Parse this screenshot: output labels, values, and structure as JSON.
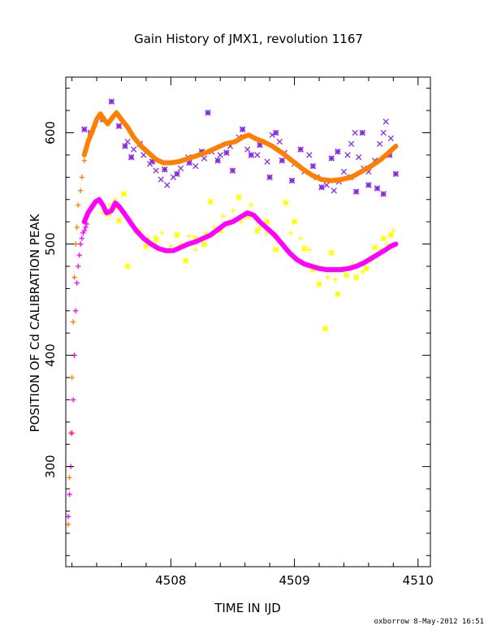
{
  "chart_data": {
    "type": "scatter",
    "title": "Gain History of JMX1, revolution 1167",
    "xlabel": "TIME IN IJD",
    "ylabel": "POSITION OF Cd CALIBRATION PEAK",
    "footer": "oxborrow  8-May-2012 16:51",
    "xlim": [
      4507.15,
      4510.1
    ],
    "ylim": [
      210,
      650
    ],
    "xticks": [
      4508,
      4509,
      4510
    ],
    "yticks": [
      300,
      400,
      500,
      600
    ],
    "grid": false,
    "series": [
      {
        "marker": "x",
        "color": "#8a2be2",
        "points": [
          [
            4507.65,
            592
          ],
          [
            4507.7,
            585
          ],
          [
            4507.78,
            580
          ],
          [
            4507.83,
            572
          ],
          [
            4507.88,
            566
          ],
          [
            4507.92,
            558
          ],
          [
            4507.97,
            553
          ],
          [
            4508.02,
            560
          ],
          [
            4508.08,
            568
          ],
          [
            4508.14,
            578
          ],
          [
            4508.2,
            570
          ],
          [
            4508.27,
            577
          ],
          [
            4508.33,
            583
          ],
          [
            4508.4,
            580
          ],
          [
            4508.48,
            588
          ],
          [
            4508.55,
            596
          ],
          [
            4508.62,
            585
          ],
          [
            4508.7,
            580
          ],
          [
            4508.78,
            574
          ],
          [
            4508.82,
            598
          ],
          [
            4508.88,
            592
          ],
          [
            4508.92,
            582
          ],
          [
            4509.0,
            572
          ],
          [
            4509.08,
            565
          ],
          [
            4509.12,
            580
          ],
          [
            4509.18,
            560
          ],
          [
            4509.26,
            553
          ],
          [
            4509.32,
            548
          ],
          [
            4509.36,
            556
          ],
          [
            4509.4,
            565
          ],
          [
            4509.43,
            580
          ],
          [
            4509.46,
            590
          ],
          [
            4509.49,
            600
          ],
          [
            4509.52,
            578
          ],
          [
            4509.56,
            568
          ],
          [
            4509.6,
            565
          ],
          [
            4509.65,
            575
          ],
          [
            4509.69,
            590
          ],
          [
            4509.72,
            600
          ],
          [
            4509.74,
            610
          ],
          [
            4509.78,
            595
          ]
        ]
      },
      {
        "marker": "asterisk",
        "color": "#8a2be2",
        "points": [
          [
            4507.3,
            603
          ],
          [
            4507.35,
            600
          ],
          [
            4507.45,
            612
          ],
          [
            4507.52,
            628
          ],
          [
            4507.58,
            606
          ],
          [
            4507.63,
            588
          ],
          [
            4507.68,
            578
          ],
          [
            4507.75,
            590
          ],
          [
            4507.85,
            574
          ],
          [
            4507.95,
            567
          ],
          [
            4508.05,
            563
          ],
          [
            4508.15,
            573
          ],
          [
            4508.25,
            583
          ],
          [
            4508.3,
            618
          ],
          [
            4508.38,
            575
          ],
          [
            4508.45,
            582
          ],
          [
            4508.5,
            566
          ],
          [
            4508.58,
            603
          ],
          [
            4508.65,
            580
          ],
          [
            4508.72,
            589
          ],
          [
            4508.8,
            560
          ],
          [
            4508.85,
            600
          ],
          [
            4508.9,
            575
          ],
          [
            4508.98,
            557
          ],
          [
            4509.05,
            585
          ],
          [
            4509.15,
            570
          ],
          [
            4509.22,
            551
          ],
          [
            4509.3,
            577
          ],
          [
            4509.35,
            583
          ],
          [
            4509.45,
            560
          ],
          [
            4509.5,
            547
          ],
          [
            4509.55,
            600
          ],
          [
            4509.6,
            553
          ],
          [
            4509.67,
            550
          ],
          [
            4509.72,
            545
          ],
          [
            4509.77,
            580
          ],
          [
            4509.82,
            563
          ]
        ]
      },
      {
        "marker": "asterisk",
        "color": "#ffff00",
        "points": [
          [
            4507.5,
            527
          ],
          [
            4507.55,
            533
          ],
          [
            4507.58,
            521
          ],
          [
            4507.62,
            545
          ],
          [
            4507.65,
            480
          ],
          [
            4507.72,
            512
          ],
          [
            4507.8,
            498
          ],
          [
            4507.88,
            505
          ],
          [
            4507.97,
            494
          ],
          [
            4508.05,
            508
          ],
          [
            4508.12,
            485
          ],
          [
            4508.2,
            505
          ],
          [
            4508.27,
            500
          ],
          [
            4508.32,
            538
          ],
          [
            4508.4,
            512
          ],
          [
            4508.48,
            520
          ],
          [
            4508.55,
            542
          ],
          [
            4508.62,
            525
          ],
          [
            4508.7,
            512
          ],
          [
            4508.78,
            520
          ],
          [
            4508.85,
            495
          ],
          [
            4508.93,
            537
          ],
          [
            4509.0,
            520
          ],
          [
            4509.08,
            496
          ],
          [
            4509.15,
            477
          ],
          [
            4509.2,
            464
          ],
          [
            4509.25,
            424
          ],
          [
            4509.3,
            492
          ],
          [
            4509.35,
            455
          ],
          [
            4509.42,
            472
          ],
          [
            4509.5,
            470
          ],
          [
            4509.58,
            478
          ],
          [
            4509.65,
            497
          ],
          [
            4509.72,
            505
          ],
          [
            4509.78,
            508
          ]
        ]
      },
      {
        "marker": "plus",
        "color": "#ffff00",
        "points": [
          [
            4507.45,
            528
          ],
          [
            4507.5,
            535
          ],
          [
            4507.55,
            540
          ],
          [
            4507.6,
            530
          ],
          [
            4507.68,
            519
          ],
          [
            4507.75,
            512
          ],
          [
            4507.82,
            505
          ],
          [
            4507.88,
            502
          ],
          [
            4507.93,
            510
          ],
          [
            4508.0,
            498
          ],
          [
            4508.08,
            500
          ],
          [
            4508.15,
            507
          ],
          [
            4508.2,
            495
          ],
          [
            4508.28,
            510
          ],
          [
            4508.35,
            515
          ],
          [
            4508.42,
            525
          ],
          [
            4508.5,
            530
          ],
          [
            4508.57,
            520
          ],
          [
            4508.65,
            535
          ],
          [
            4508.72,
            515
          ],
          [
            4508.78,
            510
          ],
          [
            4508.85,
            505
          ],
          [
            4508.9,
            500
          ],
          [
            4508.97,
            510
          ],
          [
            4509.05,
            505
          ],
          [
            4509.12,
            495
          ],
          [
            4509.2,
            480
          ],
          [
            4509.27,
            470
          ],
          [
            4509.33,
            468
          ],
          [
            4509.4,
            478
          ],
          [
            4509.47,
            482
          ],
          [
            4509.55,
            475
          ],
          [
            4509.62,
            485
          ],
          [
            4509.7,
            495
          ],
          [
            4509.75,
            500
          ],
          [
            4509.8,
            512
          ]
        ]
      },
      {
        "marker": "plus",
        "color": "#ff7f00",
        "points": [
          [
            4507.17,
            248
          ],
          [
            4507.18,
            290
          ],
          [
            4507.19,
            330
          ],
          [
            4507.2,
            380
          ],
          [
            4507.21,
            430
          ],
          [
            4507.22,
            470
          ],
          [
            4507.23,
            500
          ],
          [
            4507.24,
            515
          ],
          [
            4507.25,
            535
          ],
          [
            4507.27,
            548
          ],
          [
            4507.28,
            560
          ],
          [
            4507.3,
            575
          ],
          [
            4507.32,
            588
          ],
          [
            4507.34,
            595
          ],
          [
            4507.36,
            600
          ],
          [
            4507.38,
            605
          ]
        ]
      },
      {
        "marker": "plus",
        "color": "#ff00ff",
        "points": [
          [
            4507.17,
            255
          ],
          [
            4507.18,
            275
          ],
          [
            4507.19,
            300
          ],
          [
            4507.2,
            330
          ],
          [
            4507.21,
            360
          ],
          [
            4507.22,
            400
          ],
          [
            4507.23,
            440
          ],
          [
            4507.24,
            465
          ],
          [
            4507.25,
            480
          ],
          [
            4507.26,
            490
          ],
          [
            4507.27,
            500
          ],
          [
            4507.28,
            505
          ],
          [
            4507.29,
            510
          ],
          [
            4507.3,
            512
          ],
          [
            4507.31,
            515
          ],
          [
            4507.32,
            518
          ]
        ]
      },
      {
        "marker": "line",
        "color": "#ff7f00",
        "points": [
          [
            4507.3,
            580
          ],
          [
            4507.33,
            592
          ],
          [
            4507.36,
            600
          ],
          [
            4507.4,
            612
          ],
          [
            4507.43,
            617
          ],
          [
            4507.46,
            612
          ],
          [
            4507.49,
            608
          ],
          [
            4507.53,
            614
          ],
          [
            4507.56,
            618
          ],
          [
            4507.6,
            612
          ],
          [
            4507.65,
            605
          ],
          [
            4507.7,
            596
          ],
          [
            4507.76,
            588
          ],
          [
            4507.82,
            582
          ],
          [
            4507.88,
            576
          ],
          [
            4507.94,
            573
          ],
          [
            4508.0,
            573
          ],
          [
            4508.06,
            574
          ],
          [
            4508.12,
            576
          ],
          [
            4508.2,
            579
          ],
          [
            4508.28,
            582
          ],
          [
            4508.36,
            586
          ],
          [
            4508.44,
            590
          ],
          [
            4508.52,
            592
          ],
          [
            4508.58,
            596
          ],
          [
            4508.63,
            598
          ],
          [
            4508.68,
            595
          ],
          [
            4508.75,
            592
          ],
          [
            4508.82,
            588
          ],
          [
            4508.9,
            582
          ],
          [
            4508.98,
            575
          ],
          [
            4509.06,
            568
          ],
          [
            4509.14,
            562
          ],
          [
            4509.22,
            558
          ],
          [
            4509.3,
            557
          ],
          [
            4509.38,
            558
          ],
          [
            4509.46,
            560
          ],
          [
            4509.54,
            565
          ],
          [
            4509.62,
            570
          ],
          [
            4509.7,
            576
          ],
          [
            4509.76,
            582
          ],
          [
            4509.82,
            588
          ]
        ]
      },
      {
        "marker": "line",
        "color": "#ff00ff",
        "points": [
          [
            4507.3,
            520
          ],
          [
            4507.33,
            528
          ],
          [
            4507.36,
            533
          ],
          [
            4507.39,
            538
          ],
          [
            4507.42,
            540
          ],
          [
            4507.45,
            535
          ],
          [
            4507.48,
            528
          ],
          [
            4507.52,
            530
          ],
          [
            4507.55,
            537
          ],
          [
            4507.58,
            534
          ],
          [
            4507.62,
            528
          ],
          [
            4507.67,
            520
          ],
          [
            4507.72,
            512
          ],
          [
            4507.78,
            505
          ],
          [
            4507.84,
            500
          ],
          [
            4507.9,
            496
          ],
          [
            4507.96,
            494
          ],
          [
            4508.02,
            494
          ],
          [
            4508.08,
            497
          ],
          [
            4508.14,
            500
          ],
          [
            4508.2,
            502
          ],
          [
            4508.26,
            505
          ],
          [
            4508.32,
            508
          ],
          [
            4508.38,
            513
          ],
          [
            4508.44,
            518
          ],
          [
            4508.5,
            520
          ],
          [
            4508.56,
            524
          ],
          [
            4508.62,
            528
          ],
          [
            4508.67,
            526
          ],
          [
            4508.72,
            520
          ],
          [
            4508.78,
            514
          ],
          [
            4508.84,
            508
          ],
          [
            4508.9,
            500
          ],
          [
            4508.96,
            492
          ],
          [
            4509.02,
            486
          ],
          [
            4509.08,
            482
          ],
          [
            4509.14,
            480
          ],
          [
            4509.2,
            478
          ],
          [
            4509.26,
            477
          ],
          [
            4509.32,
            477
          ],
          [
            4509.38,
            477
          ],
          [
            4509.44,
            478
          ],
          [
            4509.5,
            480
          ],
          [
            4509.56,
            483
          ],
          [
            4509.62,
            487
          ],
          [
            4509.68,
            491
          ],
          [
            4509.74,
            495
          ],
          [
            4509.78,
            498
          ],
          [
            4509.82,
            500
          ]
        ]
      }
    ]
  }
}
